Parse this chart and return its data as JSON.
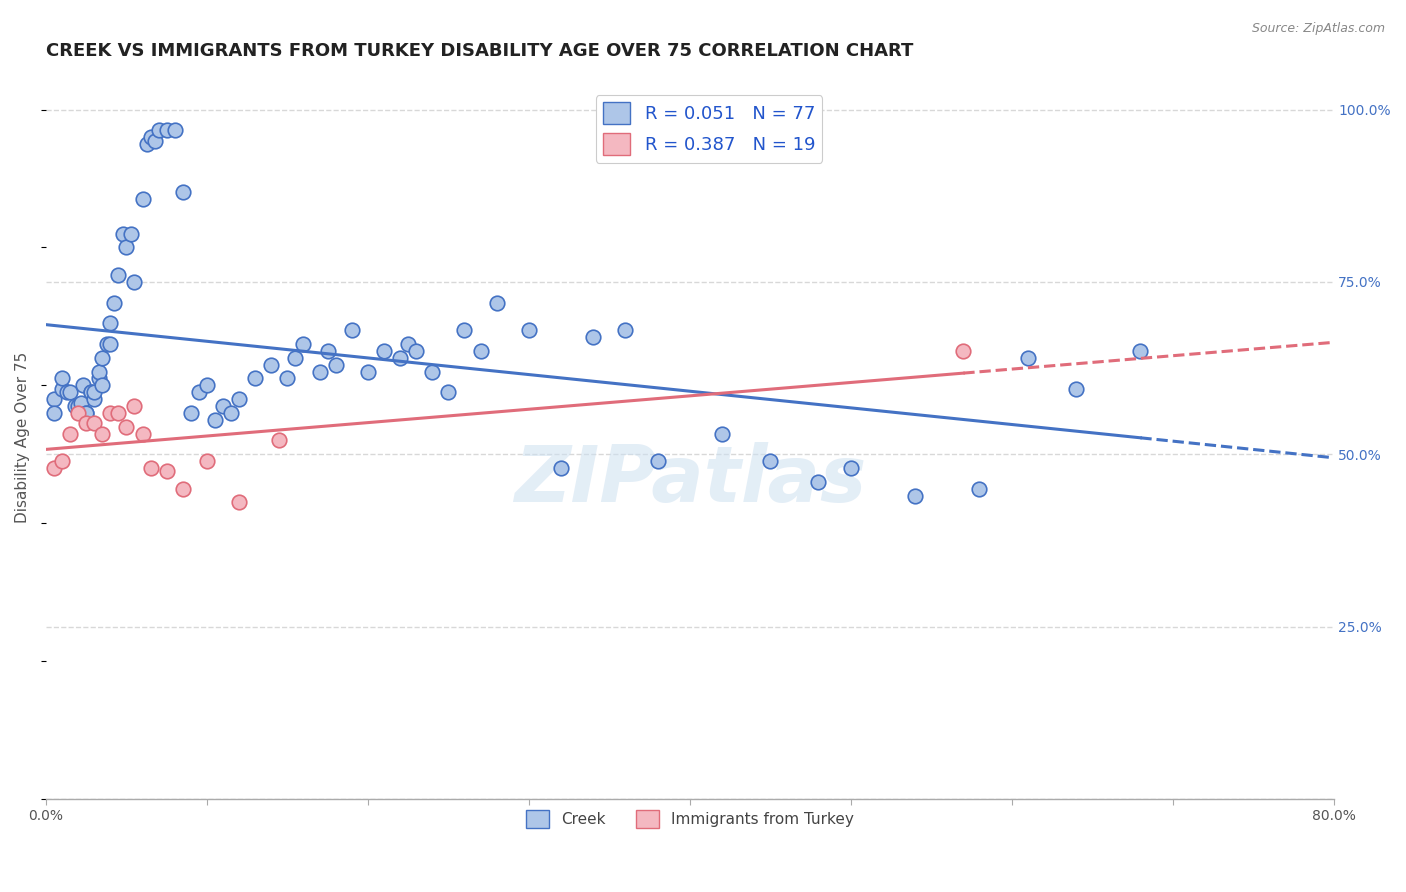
{
  "title": "CREEK VS IMMIGRANTS FROM TURKEY DISABILITY AGE OVER 75 CORRELATION CHART",
  "source": "Source: ZipAtlas.com",
  "ylabel": "Disability Age Over 75",
  "xlim": [
    0.0,
    0.8
  ],
  "ylim": [
    0.0,
    1.05
  ],
  "x_ticks": [
    0.0,
    0.1,
    0.2,
    0.3,
    0.4,
    0.5,
    0.6,
    0.7,
    0.8
  ],
  "y_ticks": [
    0.0,
    0.25,
    0.5,
    0.75,
    1.0
  ],
  "y_tick_labels_right": [
    "",
    "25.0%",
    "50.0%",
    "75.0%",
    "100.0%"
  ],
  "creek_R": 0.051,
  "creek_N": 77,
  "turkey_R": 0.387,
  "turkey_N": 19,
  "creek_color": "#aec6e8",
  "creek_line_color": "#4472c4",
  "turkey_color": "#f4b8c1",
  "turkey_line_color": "#e06c7a",
  "creek_scatter_x": [
    0.005,
    0.005,
    0.01,
    0.01,
    0.013,
    0.015,
    0.018,
    0.02,
    0.022,
    0.023,
    0.025,
    0.025,
    0.028,
    0.028,
    0.03,
    0.03,
    0.033,
    0.033,
    0.035,
    0.035,
    0.038,
    0.04,
    0.04,
    0.042,
    0.045,
    0.048,
    0.05,
    0.053,
    0.055,
    0.06,
    0.063,
    0.065,
    0.068,
    0.07,
    0.075,
    0.08,
    0.085,
    0.09,
    0.095,
    0.1,
    0.105,
    0.11,
    0.115,
    0.12,
    0.13,
    0.14,
    0.15,
    0.155,
    0.16,
    0.17,
    0.175,
    0.18,
    0.19,
    0.2,
    0.21,
    0.22,
    0.225,
    0.23,
    0.24,
    0.25,
    0.26,
    0.27,
    0.28,
    0.3,
    0.32,
    0.34,
    0.36,
    0.38,
    0.42,
    0.45,
    0.48,
    0.5,
    0.54,
    0.58,
    0.61,
    0.64,
    0.68
  ],
  "creek_scatter_y": [
    0.58,
    0.56,
    0.595,
    0.61,
    0.59,
    0.59,
    0.57,
    0.57,
    0.575,
    0.6,
    0.56,
    0.56,
    0.59,
    0.59,
    0.58,
    0.59,
    0.61,
    0.62,
    0.64,
    0.6,
    0.66,
    0.66,
    0.69,
    0.72,
    0.76,
    0.82,
    0.8,
    0.82,
    0.75,
    0.87,
    0.95,
    0.96,
    0.955,
    0.97,
    0.97,
    0.97,
    0.88,
    0.56,
    0.59,
    0.6,
    0.55,
    0.57,
    0.56,
    0.58,
    0.61,
    0.63,
    0.61,
    0.64,
    0.66,
    0.62,
    0.65,
    0.63,
    0.68,
    0.62,
    0.65,
    0.64,
    0.66,
    0.65,
    0.62,
    0.59,
    0.68,
    0.65,
    0.72,
    0.68,
    0.48,
    0.67,
    0.68,
    0.49,
    0.53,
    0.49,
    0.46,
    0.48,
    0.44,
    0.45,
    0.64,
    0.595,
    0.65
  ],
  "turkey_scatter_x": [
    0.005,
    0.01,
    0.015,
    0.02,
    0.025,
    0.03,
    0.035,
    0.04,
    0.045,
    0.05,
    0.055,
    0.06,
    0.065,
    0.075,
    0.085,
    0.1,
    0.12,
    0.145,
    0.57
  ],
  "turkey_scatter_y": [
    0.48,
    0.49,
    0.53,
    0.56,
    0.545,
    0.545,
    0.53,
    0.56,
    0.56,
    0.54,
    0.57,
    0.53,
    0.48,
    0.475,
    0.45,
    0.49,
    0.43,
    0.52,
    0.65
  ],
  "watermark": "ZIPatlas",
  "background_color": "#ffffff",
  "grid_color": "#d8d8d8",
  "title_fontsize": 13,
  "axis_label_fontsize": 11,
  "tick_fontsize": 10
}
